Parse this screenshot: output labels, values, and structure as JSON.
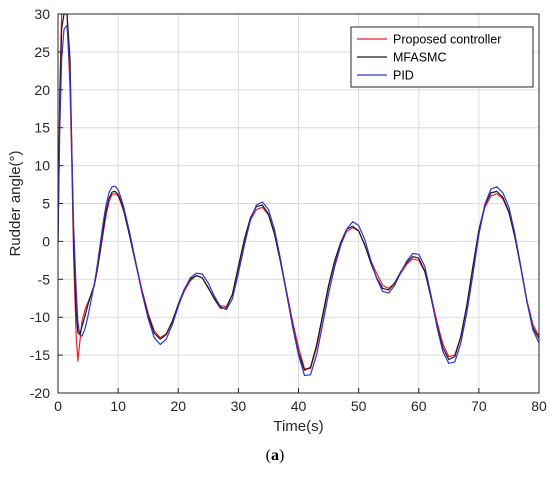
{
  "caption": {
    "open": "(",
    "letter": "a",
    "close": ")"
  },
  "chart_data": {
    "type": "line",
    "xlabel": "Time(s)",
    "ylabel": "Rudder angle(°)",
    "xlim": [
      0,
      80
    ],
    "ylim": [
      -20,
      30
    ],
    "xticks": [
      0,
      10,
      20,
      30,
      40,
      50,
      60,
      70,
      80
    ],
    "yticks": [
      -20,
      -15,
      -10,
      -5,
      0,
      5,
      10,
      15,
      20,
      25,
      30
    ],
    "grid": true,
    "legend": {
      "position": "top-right"
    },
    "series": [
      {
        "name": "Proposed controller",
        "color": "#e8202a",
        "x": [
          0,
          0.3,
          0.6,
          1.0,
          1.5,
          2.0,
          2.3,
          2.6,
          3.0,
          3.3,
          3.6,
          4.0,
          4.5,
          5.0,
          5.5,
          6,
          6.5,
          7,
          7.5,
          8,
          8.5,
          9,
          9.5,
          10,
          10.5,
          11,
          12,
          13,
          14,
          15,
          16,
          17,
          18,
          19,
          20,
          21,
          22,
          23,
          24,
          25,
          26,
          27,
          28,
          29,
          30,
          31,
          32,
          33,
          34,
          35,
          36,
          37,
          38,
          39,
          40,
          41,
          42,
          43,
          44,
          45,
          46,
          47,
          48,
          49,
          50,
          51,
          52,
          53,
          54,
          55,
          56,
          57,
          58,
          59,
          60,
          61,
          62,
          63,
          64,
          65,
          66,
          67,
          68,
          69,
          70,
          71,
          72,
          73,
          74,
          75,
          76,
          77,
          78,
          79,
          80
        ],
        "y": [
          0,
          20,
          30,
          30,
          30,
          20,
          10,
          -2,
          -12,
          -15.8,
          -13.5,
          -10.5,
          -9,
          -8,
          -7,
          -6,
          -4,
          -1.5,
          1,
          3.5,
          5.3,
          6.2,
          6.3,
          6,
          5,
          3.8,
          0.5,
          -3,
          -6.5,
          -9.5,
          -11.8,
          -12.7,
          -12.2,
          -10.5,
          -8.5,
          -6.6,
          -5.2,
          -4.5,
          -4.8,
          -6.2,
          -7.5,
          -8.5,
          -8.6,
          -7,
          -3.5,
          0,
          2.8,
          4.2,
          4.5,
          3.5,
          1,
          -2.5,
          -6.5,
          -10.5,
          -14,
          -16.8,
          -16.8,
          -14,
          -10,
          -6,
          -2.8,
          -0.5,
          1.3,
          1.8,
          1.4,
          -0.5,
          -2.5,
          -4.2,
          -5.8,
          -6.2,
          -5.5,
          -4.2,
          -3,
          -2.3,
          -2.5,
          -4,
          -7,
          -10.5,
          -13.5,
          -15.2,
          -15,
          -12.5,
          -8.5,
          -3.5,
          1.2,
          4.5,
          6,
          6.3,
          5.6,
          3.8,
          0.5,
          -3.5,
          -7.8,
          -11,
          -12.5
        ]
      },
      {
        "name": "MFASMC",
        "color": "#1a1a1a",
        "x": [
          0,
          0.3,
          0.6,
          1.0,
          1.5,
          2.0,
          2.3,
          2.6,
          3.0,
          3.3,
          3.6,
          4.0,
          4.5,
          5.0,
          5.5,
          6,
          6.5,
          7,
          7.5,
          8,
          8.5,
          9,
          9.5,
          10,
          10.5,
          11,
          12,
          13,
          14,
          15,
          16,
          17,
          18,
          19,
          20,
          21,
          22,
          23,
          24,
          25,
          26,
          27,
          28,
          29,
          30,
          31,
          32,
          33,
          34,
          35,
          36,
          37,
          38,
          39,
          40,
          41,
          42,
          43,
          44,
          45,
          46,
          47,
          48,
          49,
          50,
          51,
          52,
          53,
          54,
          55,
          56,
          57,
          58,
          59,
          60,
          61,
          62,
          63,
          64,
          65,
          66,
          67,
          68,
          69,
          70,
          71,
          72,
          73,
          74,
          75,
          76,
          77,
          78,
          79,
          80
        ],
        "y": [
          0,
          18,
          28,
          30,
          30,
          24,
          12,
          0,
          -9,
          -12,
          -12.3,
          -11.2,
          -9.8,
          -8.3,
          -7,
          -5.8,
          -3.8,
          -1.3,
          1.5,
          4,
          5.7,
          6.5,
          6.6,
          6.2,
          5.2,
          3.9,
          0.4,
          -3.2,
          -6.8,
          -9.8,
          -12.1,
          -12.9,
          -12.3,
          -10.6,
          -8.3,
          -6.3,
          -5,
          -4.5,
          -4.8,
          -6.1,
          -7.6,
          -8.8,
          -8.8,
          -7,
          -3.3,
          0.3,
          3.1,
          4.6,
          4.8,
          3.6,
          1,
          -2.7,
          -6.8,
          -11,
          -14.7,
          -17,
          -16.6,
          -13.7,
          -9.8,
          -5.8,
          -2.6,
          -0.2,
          1.6,
          2,
          1.4,
          -0.4,
          -2.8,
          -4.8,
          -6.2,
          -6.4,
          -5.5,
          -4,
          -2.8,
          -2,
          -2.2,
          -3.9,
          -7.3,
          -11,
          -14,
          -15.6,
          -15.2,
          -12.6,
          -8.4,
          -3.3,
          1.5,
          4.8,
          6.4,
          6.6,
          5.8,
          3.9,
          0.6,
          -3.6,
          -8,
          -11.4,
          -12.8
        ]
      },
      {
        "name": "PID",
        "color": "#3333cc",
        "x": [
          0,
          0.3,
          0.6,
          1.0,
          1.5,
          2.0,
          2.3,
          2.6,
          3.0,
          3.3,
          3.6,
          4.0,
          4.5,
          5.0,
          5.5,
          6,
          6.5,
          7,
          7.5,
          8,
          8.5,
          9,
          9.5,
          10,
          10.5,
          11,
          12,
          13,
          14,
          15,
          16,
          17,
          18,
          19,
          20,
          21,
          22,
          23,
          24,
          25,
          26,
          27,
          28,
          29,
          30,
          31,
          32,
          33,
          34,
          35,
          36,
          37,
          38,
          39,
          40,
          41,
          42,
          43,
          44,
          45,
          46,
          47,
          48,
          49,
          50,
          51,
          52,
          53,
          54,
          55,
          56,
          57,
          58,
          59,
          60,
          61,
          62,
          63,
          64,
          65,
          66,
          67,
          68,
          69,
          70,
          71,
          72,
          73,
          74,
          75,
          76,
          77,
          78,
          79,
          80
        ],
        "y": [
          0,
          15,
          24,
          28,
          28.5,
          22,
          12,
          2,
          -6,
          -10.5,
          -12.3,
          -12.5,
          -11.5,
          -9.8,
          -7.8,
          -5.8,
          -3.3,
          -0.5,
          2.4,
          4.8,
          6.5,
          7.2,
          7.3,
          6.8,
          5.7,
          4.3,
          0.9,
          -3,
          -6.9,
          -10.2,
          -12.7,
          -13.6,
          -12.9,
          -11,
          -8.6,
          -6.4,
          -4.8,
          -4.2,
          -4.3,
          -5.5,
          -7.2,
          -8.6,
          -9,
          -7.6,
          -4.2,
          -0.5,
          2.8,
          4.8,
          5.2,
          4.2,
          1.6,
          -2.3,
          -6.8,
          -11.2,
          -15,
          -17.7,
          -17.6,
          -15,
          -11,
          -6.9,
          -3.4,
          -0.6,
          1.6,
          2.6,
          2.1,
          0.3,
          -2.4,
          -4.9,
          -6.6,
          -6.8,
          -5.8,
          -4.1,
          -2.6,
          -1.6,
          -1.7,
          -3.3,
          -6.9,
          -11.2,
          -14.5,
          -16.1,
          -15.9,
          -13.4,
          -9.4,
          -4.4,
          0.9,
          4.9,
          6.9,
          7.2,
          6.4,
          4.5,
          1,
          -3.4,
          -8,
          -11.7,
          -13.4
        ]
      }
    ]
  }
}
